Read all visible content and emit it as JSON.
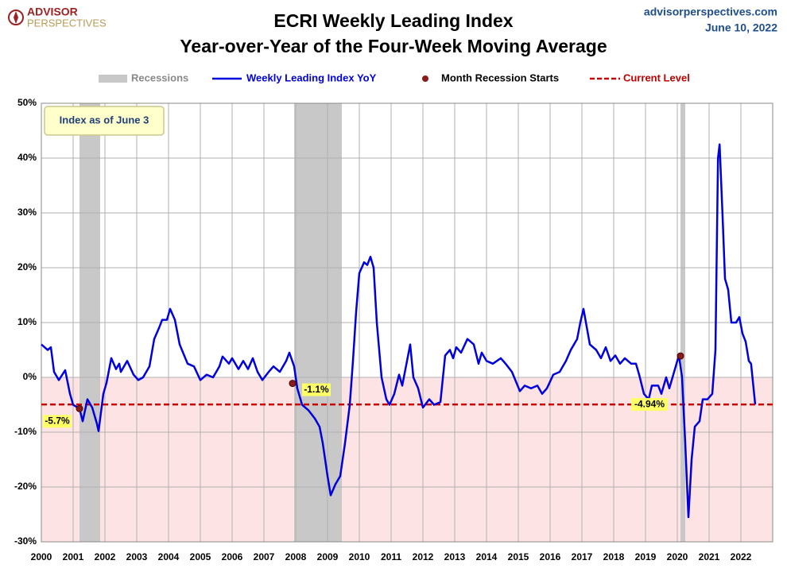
{
  "chart_data": {
    "type": "line",
    "title": "ECRI Weekly Leading Index",
    "subtitle": "Year-over-Year of the Four-Week Moving Average",
    "logo": [
      "ADVISOR",
      "PERSPECTIVES"
    ],
    "source": "advisorperspectives.com",
    "date": "June 10, 2022",
    "annotation": "Index as of June 3",
    "xlim": [
      2000,
      2023
    ],
    "xticks": [
      2000,
      2001,
      2002,
      2003,
      2004,
      2005,
      2006,
      2007,
      2008,
      2009,
      2010,
      2011,
      2012,
      2013,
      2014,
      2015,
      2016,
      2017,
      2018,
      2019,
      2020,
      2021,
      2022
    ],
    "ylim": [
      -30,
      50
    ],
    "yticks": [
      {
        "value": -30,
        "label": "-30%"
      },
      {
        "value": -20,
        "label": "-20%"
      },
      {
        "value": -10,
        "label": "-10%"
      },
      {
        "value": 0,
        "label": "0%"
      },
      {
        "value": 10,
        "label": "10%"
      },
      {
        "value": 20,
        "label": "20%"
      },
      {
        "value": 30,
        "label": "30%"
      },
      {
        "value": 40,
        "label": "40%"
      },
      {
        "value": 50,
        "label": "50%"
      }
    ],
    "grid": true,
    "recessions": {
      "name": "Recessions",
      "color": "#c8c8c8",
      "periods": [
        [
          2001.2,
          2001.85
        ],
        [
          2007.95,
          2009.45
        ],
        [
          2020.1,
          2020.25
        ]
      ]
    },
    "series": [
      {
        "name": "Weekly Leading Index YoY",
        "color": "#0000dd",
        "x": [
          2000.0,
          2000.2,
          2000.3,
          2000.4,
          2000.55,
          2000.75,
          2000.9,
          2001.0,
          2001.2,
          2001.3,
          2001.45,
          2001.6,
          2001.75,
          2001.8,
          2001.95,
          2002.05,
          2002.2,
          2002.35,
          2002.45,
          2002.5,
          2002.7,
          2002.9,
          2003.05,
          2003.2,
          2003.4,
          2003.55,
          2003.7,
          2003.8,
          2003.95,
          2004.05,
          2004.2,
          2004.35,
          2004.6,
          2004.8,
          2005.0,
          2005.2,
          2005.4,
          2005.6,
          2005.7,
          2005.9,
          2006.0,
          2006.2,
          2006.35,
          2006.5,
          2006.65,
          2006.8,
          2006.95,
          2007.15,
          2007.3,
          2007.5,
          2007.7,
          2007.8,
          2007.95,
          2008.05,
          2008.2,
          2008.4,
          2008.6,
          2008.75,
          2008.85,
          2009.0,
          2009.1,
          2009.25,
          2009.4,
          2009.55,
          2009.7,
          2009.8,
          2009.9,
          2010.0,
          2010.15,
          2010.25,
          2010.35,
          2010.45,
          2010.55,
          2010.7,
          2010.85,
          2010.95,
          2011.1,
          2011.25,
          2011.35,
          2011.5,
          2011.6,
          2011.7,
          2011.85,
          2012.0,
          2012.2,
          2012.35,
          2012.55,
          2012.7,
          2012.85,
          2012.95,
          2013.05,
          2013.2,
          2013.4,
          2013.6,
          2013.75,
          2013.85,
          2014.0,
          2014.2,
          2014.45,
          2014.6,
          2014.8,
          2015.05,
          2015.2,
          2015.4,
          2015.6,
          2015.75,
          2015.9,
          2016.1,
          2016.3,
          2016.5,
          2016.65,
          2016.85,
          2016.95,
          2017.05,
          2017.25,
          2017.45,
          2017.6,
          2017.75,
          2017.9,
          2018.05,
          2018.2,
          2018.35,
          2018.55,
          2018.7,
          2018.8,
          2018.95,
          2019.1,
          2019.2,
          2019.4,
          2019.5,
          2019.65,
          2019.75,
          2019.95,
          2020.05,
          2020.15,
          2020.25,
          2020.35,
          2020.45,
          2020.55,
          2020.7,
          2020.8,
          2020.95,
          2021.1,
          2021.2,
          2021.28,
          2021.33,
          2021.42,
          2021.5,
          2021.6,
          2021.7,
          2021.85,
          2021.95,
          2022.05,
          2022.15,
          2022.25,
          2022.32,
          2022.45
        ],
        "values": [
          6,
          5,
          5.5,
          1,
          -0.5,
          1.3,
          -3,
          -5,
          -5.7,
          -8,
          -4,
          -5.5,
          -8.5,
          -9.8,
          -3,
          -1,
          3.5,
          1.5,
          2.5,
          1,
          3,
          0.5,
          -0.5,
          0,
          2,
          7,
          9,
          10.5,
          10.5,
          12.5,
          10.5,
          6,
          2.5,
          2,
          -0.5,
          0.5,
          0,
          2,
          3.8,
          2.5,
          3.5,
          1.5,
          3,
          1.5,
          3.5,
          1,
          -0.5,
          1,
          2,
          1,
          3,
          4.5,
          2,
          -2,
          -5,
          -6,
          -7.5,
          -9,
          -12,
          -18,
          -21.5,
          -19.5,
          -18,
          -12,
          -5,
          3,
          12,
          19,
          21,
          20.5,
          22,
          20,
          10,
          0,
          -4,
          -5,
          -3,
          0.5,
          -1.5,
          3,
          6,
          0,
          -2,
          -5.5,
          -4,
          -5,
          -4.5,
          4,
          5,
          3.5,
          5.5,
          4.5,
          7,
          6,
          2.5,
          4.5,
          3,
          2.5,
          3.5,
          2.5,
          1,
          -2.5,
          -1.5,
          -2,
          -1.5,
          -3,
          -2,
          0.5,
          1,
          3,
          5,
          7,
          10,
          12.5,
          6,
          5,
          3.5,
          5.5,
          3,
          4,
          2.5,
          3.5,
          2.5,
          2.5,
          0.5,
          -3,
          -4,
          -1.5,
          -1.5,
          -3,
          0,
          -2,
          2,
          4,
          0,
          -12,
          -25.5,
          -15,
          -9,
          -8,
          -4,
          -4,
          -3,
          5,
          40,
          42.5,
          30,
          18,
          16,
          10,
          10,
          11,
          8,
          6.5,
          3,
          2.5,
          -4.94
        ]
      }
    ],
    "recession_starts": {
      "name": "Month Recession Starts",
      "color": "#8b1a1a",
      "x": [
        2001.2,
        2007.9,
        2020.1
      ],
      "values": [
        -5.7,
        -1.1,
        3.9
      ],
      "value_labels": [
        "-5.7%",
        "-1.1%",
        null
      ]
    },
    "current_level": {
      "name": "Current Level",
      "color": "#cc0000",
      "value": -4.94,
      "value_label": "-4.94%"
    }
  }
}
